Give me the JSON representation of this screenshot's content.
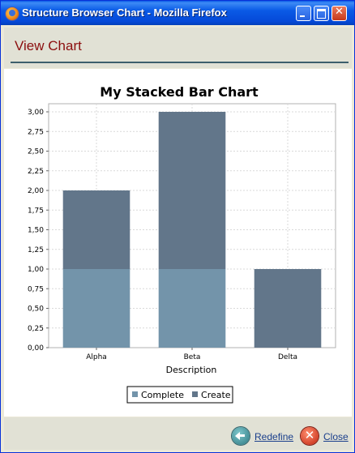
{
  "window": {
    "title": "Structure Browser Chart - Mozilla Firefox"
  },
  "header": {
    "title": "View Chart"
  },
  "footer": {
    "redefine_label": "Redefine",
    "close_label": "Close"
  },
  "icons": {
    "app": "firefox-icon",
    "redefine": "back-arrow-icon",
    "close": "close-x-icon"
  },
  "chart_data": {
    "type": "bar",
    "stacked": true,
    "title": "My Stacked Bar Chart",
    "xlabel": "Description",
    "ylabel": "",
    "categories": [
      "Alpha",
      "Beta",
      "Delta"
    ],
    "series": [
      {
        "name": "Complete",
        "values": [
          1,
          1,
          0
        ],
        "color": "#7394aa"
      },
      {
        "name": "Create",
        "values": [
          1,
          2,
          1
        ],
        "color": "#62768a"
      }
    ],
    "ylim": [
      0,
      3.0
    ],
    "yticks": [
      "0,00",
      "0,25",
      "0,50",
      "0,75",
      "1,00",
      "1,25",
      "1,50",
      "1,75",
      "2,00",
      "2,25",
      "2,50",
      "2,75",
      "3,00"
    ],
    "grid": true,
    "legend_position": "bottom"
  }
}
